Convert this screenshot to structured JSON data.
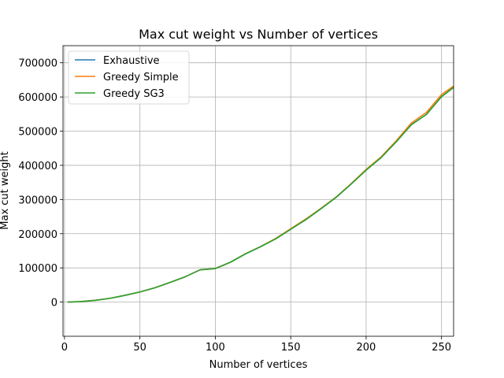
{
  "chart_data": {
    "type": "line",
    "title": "Max cut weight vs Number of vertices",
    "xlabel": "Number of vertices",
    "ylabel": "Max cut weight",
    "xlim": [
      -1,
      258
    ],
    "ylim": [
      -100000,
      750000
    ],
    "xticks": [
      0,
      50,
      100,
      150,
      200,
      250
    ],
    "yticks": [
      0,
      100000,
      200000,
      300000,
      400000,
      500000,
      600000,
      700000
    ],
    "grid": true,
    "legend": "top-left",
    "x": [
      2,
      10,
      20,
      30,
      40,
      50,
      60,
      70,
      80,
      90,
      100,
      110,
      120,
      130,
      140,
      150,
      160,
      170,
      180,
      190,
      200,
      210,
      220,
      230,
      240,
      250,
      258
    ],
    "series": [
      {
        "name": "Exhaustive",
        "color": "#1f77b4",
        "values": [
          1,
          1300,
          4900,
          10900,
          19600,
          29500,
          42000,
          57500,
          74000,
          94500,
          98000,
          116500,
          141000,
          162000,
          185000,
          213000,
          241000,
          273000,
          306000,
          345000,
          386000,
          423000,
          469000,
          519000,
          549000,
          601000,
          628000
        ]
      },
      {
        "name": "Greedy Simple",
        "color": "#ff7f0e",
        "values": [
          1,
          1300,
          4900,
          10900,
          19600,
          29500,
          42000,
          57500,
          74000,
          94500,
          98000,
          116500,
          141500,
          162500,
          186000,
          214500,
          243000,
          274000,
          307000,
          346000,
          388000,
          425000,
          472000,
          524000,
          555000,
          607000,
          632000
        ]
      },
      {
        "name": "Greedy SG3",
        "color": "#2ca02c",
        "values": [
          1,
          1300,
          4900,
          10900,
          19600,
          29500,
          42000,
          57500,
          74000,
          94500,
          98000,
          116500,
          141000,
          162000,
          185000,
          213000,
          241000,
          273000,
          306000,
          345000,
          386000,
          423000,
          469000,
          519000,
          549000,
          601000,
          628000
        ]
      }
    ]
  }
}
